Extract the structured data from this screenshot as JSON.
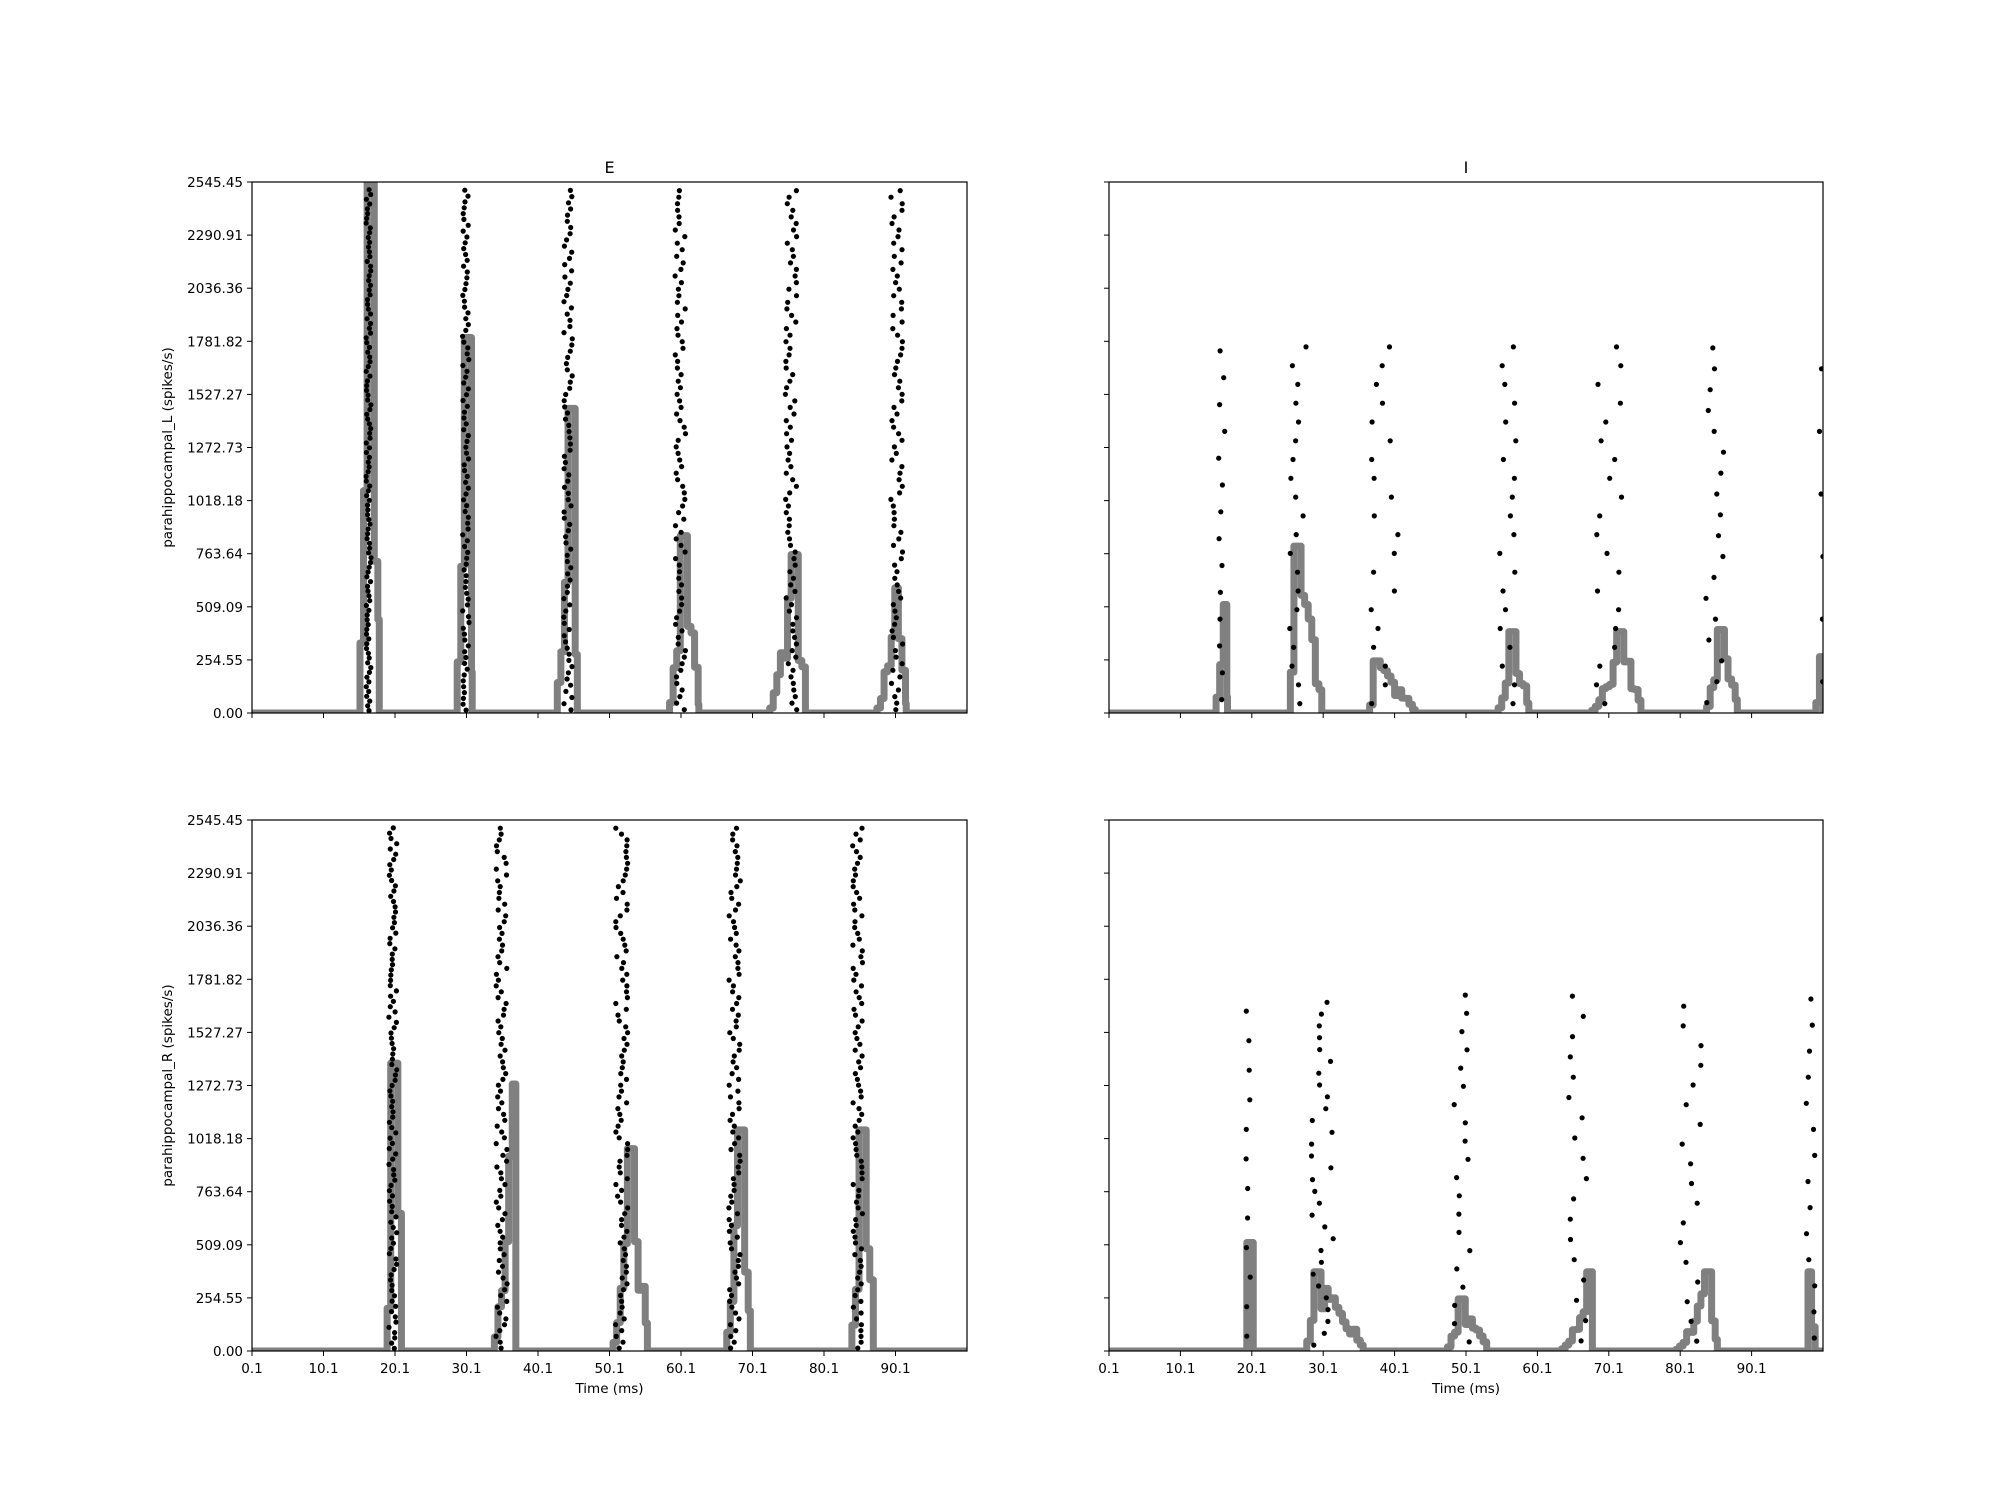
{
  "chart_data": {
    "type": "raster+rate",
    "layout": "2x2 grid, shared x and y axes",
    "x_ticks": [
      "0.1",
      "10.1",
      "20.1",
      "30.1",
      "40.1",
      "50.1",
      "60.1",
      "70.1",
      "80.1",
      "90.1"
    ],
    "y_ticks": [
      "0.00",
      "254.55",
      "509.09",
      "763.64",
      "1018.18",
      "1272.73",
      "1527.27",
      "1781.82",
      "2036.36",
      "2290.91",
      "2545.45"
    ],
    "xlim": [
      0.1,
      100.1
    ],
    "ylim": [
      0,
      2545.45
    ],
    "xlabel": "Time (ms)",
    "colors": {
      "rate_line": "#808080",
      "spikes": "#000000",
      "axes": "#000000"
    },
    "panels": [
      {
        "row": 0,
        "col": 0,
        "title": "E",
        "ylabel": "parahippocampal_L (spikes/s)",
        "show_y_labels": true,
        "show_x_labels": false,
        "spike_bursts": [
          {
            "center": 16.4,
            "spread": 0.35,
            "count": 110
          },
          {
            "center": 30.0,
            "spread": 0.45,
            "count": 90
          },
          {
            "center": 44.3,
            "spread": 0.6,
            "count": 85
          },
          {
            "center": 60.0,
            "spread": 0.75,
            "count": 80
          },
          {
            "center": 75.5,
            "spread": 0.8,
            "count": 80
          },
          {
            "center": 90.3,
            "spread": 0.85,
            "count": 80
          }
        ],
        "rate_bursts": [
          {
            "start": 14.7,
            "peak": 16.4,
            "peak_value": 2545.45,
            "end": 17.9
          },
          {
            "start": 28.3,
            "peak": 30.0,
            "peak_value": 1800,
            "end": 30.9
          },
          {
            "start": 42.3,
            "peak": 44.4,
            "peak_value": 1460,
            "end": 45.6
          },
          {
            "start": 58.0,
            "peak": 60.3,
            "peak_value": 850,
            "end": 62.6
          },
          {
            "start": 72.0,
            "peak": 75.6,
            "peak_value": 760,
            "end": 77.5
          },
          {
            "start": 87.0,
            "peak": 90.0,
            "peak_value": 600,
            "end": 91.6
          }
        ]
      },
      {
        "row": 0,
        "col": 1,
        "title": "I",
        "ylabel": "",
        "show_y_labels": false,
        "show_x_labels": false,
        "spike_bursts": [
          {
            "center": 15.9,
            "spread": 0.5,
            "count": 14,
            "ymax": 1800
          },
          {
            "center": 26.6,
            "spread": 1.2,
            "count": 20,
            "ymax": 1800
          },
          {
            "center": 38.5,
            "spread": 2.2,
            "count": 20,
            "ymax": 1800
          },
          {
            "center": 56.1,
            "spread": 1.3,
            "count": 20,
            "ymax": 1800
          },
          {
            "center": 70.2,
            "spread": 2.0,
            "count": 20,
            "ymax": 1800
          },
          {
            "center": 85.0,
            "spread": 1.3,
            "count": 18,
            "ymax": 1800
          },
          {
            "center": 99.9,
            "spread": 0.3,
            "count": 6,
            "ymax": 1800
          }
        ],
        "rate_bursts": [
          {
            "start": 14.6,
            "peak": 16.1,
            "peak_value": 520,
            "end": 16.7
          },
          {
            "start": 25.0,
            "peak": 26.2,
            "peak_value": 800,
            "end": 29.9
          },
          {
            "start": 36.1,
            "peak": 37.5,
            "peak_value": 250,
            "end": 43.0
          },
          {
            "start": 54.1,
            "peak": 56.4,
            "peak_value": 390,
            "end": 58.9
          },
          {
            "start": 67.2,
            "peak": 71.4,
            "peak_value": 390,
            "end": 74.6
          },
          {
            "start": 83.3,
            "peak": 85.4,
            "peak_value": 400,
            "end": 88.1
          },
          {
            "start": 98.6,
            "peak": 100.0,
            "peak_value": 270,
            "end": 100.1
          }
        ]
      },
      {
        "row": 1,
        "col": 0,
        "title": "",
        "ylabel": "parahippocampal_R (spikes/s)",
        "show_y_labels": true,
        "show_x_labels": true,
        "spike_bursts": [
          {
            "center": 19.8,
            "spread": 0.55,
            "count": 100
          },
          {
            "center": 35.0,
            "spread": 0.8,
            "count": 90
          },
          {
            "center": 51.8,
            "spread": 0.85,
            "count": 90
          },
          {
            "center": 67.6,
            "spread": 0.8,
            "count": 90
          },
          {
            "center": 84.8,
            "spread": 0.7,
            "count": 90
          }
        ],
        "rate_bursts": [
          {
            "start": 18.5,
            "peak": 19.9,
            "peak_value": 1380,
            "end": 21.0
          },
          {
            "start": 33.5,
            "peak": 36.5,
            "peak_value": 1280,
            "end": 37.0
          },
          {
            "start": 50.1,
            "peak": 52.9,
            "peak_value": 970,
            "end": 55.4
          },
          {
            "start": 66.0,
            "peak": 68.1,
            "peak_value": 1060,
            "end": 69.8
          },
          {
            "start": 83.5,
            "peak": 85.2,
            "peak_value": 1060,
            "end": 87.0
          }
        ]
      },
      {
        "row": 1,
        "col": 1,
        "title": "",
        "ylabel": "",
        "show_y_labels": false,
        "show_x_labels": true,
        "spike_bursts": [
          {
            "center": 19.6,
            "spread": 0.3,
            "count": 12,
            "ymax": 1700
          },
          {
            "center": 30.0,
            "spread": 1.6,
            "count": 30,
            "ymax": 1700
          },
          {
            "center": 49.5,
            "spread": 1.4,
            "count": 20,
            "ymax": 1750
          },
          {
            "center": 65.8,
            "spread": 1.5,
            "count": 18,
            "ymax": 1750
          },
          {
            "center": 81.6,
            "spread": 1.5,
            "count": 18,
            "ymax": 1700
          },
          {
            "center": 98.3,
            "spread": 0.7,
            "count": 14,
            "ymax": 1750
          }
        ],
        "rate_bursts": [
          {
            "start": 18.9,
            "peak": 19.7,
            "peak_value": 520,
            "end": 20.3
          },
          {
            "start": 27.3,
            "peak": 28.9,
            "peak_value": 380,
            "end": 35.7
          },
          {
            "start": 47.0,
            "peak": 49.1,
            "peak_value": 250,
            "end": 53.0
          },
          {
            "start": 63.0,
            "peak": 67.2,
            "peak_value": 380,
            "end": 67.8
          },
          {
            "start": 79.0,
            "peak": 83.8,
            "peak_value": 380,
            "end": 85.3
          },
          {
            "start": 97.5,
            "peak": 98.0,
            "peak_value": 380,
            "end": 99.0
          }
        ]
      }
    ]
  }
}
